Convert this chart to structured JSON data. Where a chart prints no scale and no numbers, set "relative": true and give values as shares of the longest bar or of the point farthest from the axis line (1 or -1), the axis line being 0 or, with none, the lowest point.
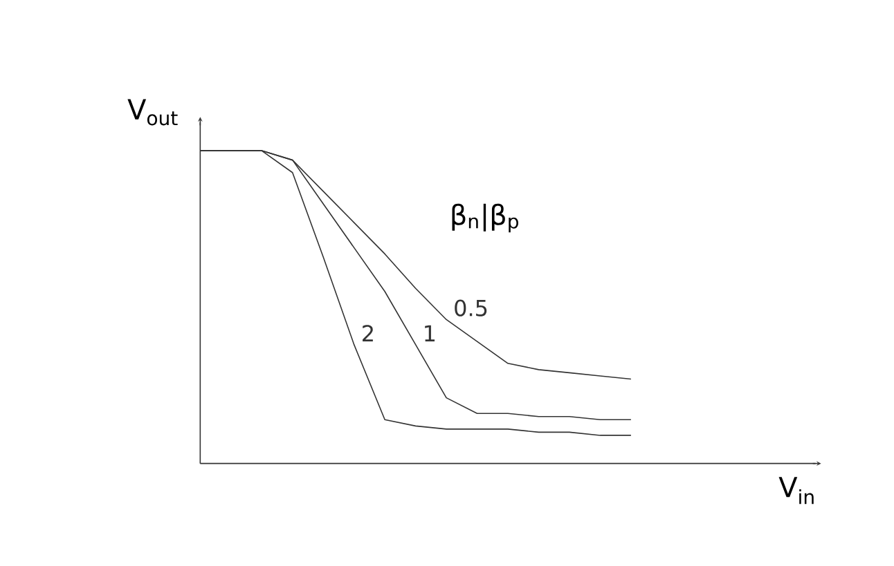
{
  "chart_data": {
    "type": "line",
    "relative": true,
    "xlabel": "V$_{in}$",
    "ylabel": "V$_{out}$",
    "annotations": [
      "β$_{n}$|β$_{p}$"
    ],
    "categories": [
      null,
      null,
      null,
      null,
      null,
      null,
      null,
      null,
      null,
      null,
      null,
      null,
      null,
      null,
      null
    ],
    "series": [
      {
        "name": "0.5",
        "color": "#333333",
        "values": [
          1,
          1,
          1,
          0.97,
          0.87,
          0.77,
          0.67,
          0.56,
          0.46,
          0.39,
          0.32,
          0.3,
          0.29,
          0.28,
          0.27
        ]
      },
      {
        "name": "1",
        "color": "#333333",
        "values": [
          1,
          1,
          1,
          0.97,
          0.83,
          0.69,
          0.55,
          0.38,
          0.21,
          0.16,
          0.16,
          0.15,
          0.15,
          0.14,
          0.14
        ]
      },
      {
        "name": "2",
        "color": "#333333",
        "values": [
          1,
          1,
          1,
          0.93,
          0.66,
          0.38,
          0.14,
          0.12,
          0.11,
          0.11,
          0.11,
          0.1,
          0.1,
          0.09,
          0.09
        ]
      }
    ]
  }
}
